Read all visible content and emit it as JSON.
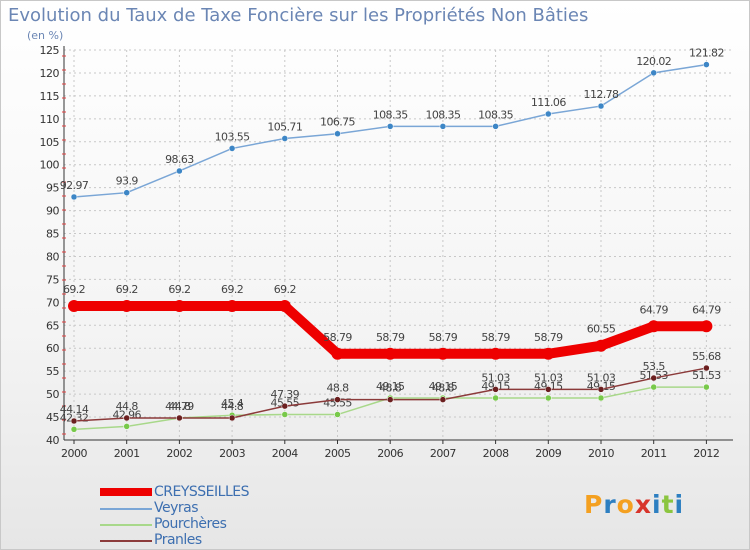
{
  "title": "Evolution du Taux de Taxe Foncière sur les Propriétés Non Bâties",
  "subtitle": "(en %)",
  "logo": {
    "text": "Proxiti",
    "letter_colors": [
      "#f4a020",
      "#2d7fc1",
      "#f4a020",
      "#d8342a",
      "#2d7fc1",
      "#8bc53f",
      "#2d7fc1"
    ]
  },
  "colors": {
    "title": "#6b86b4",
    "grid": "#c8c8c8",
    "axis": "#333333",
    "tick_label": "#333333",
    "data_label": "#444444"
  },
  "chart_data": {
    "type": "line",
    "title": "Evolution du Taux de Taxe Foncière sur les Propriétés Non Bâties",
    "subtitle": "(en %)",
    "xlabel": "",
    "ylabel": "",
    "x": [
      "2000",
      "2001",
      "2002",
      "2003",
      "2004",
      "2005",
      "2006",
      "2007",
      "2008",
      "2009",
      "2010",
      "2011",
      "2012"
    ],
    "ylim": [
      40,
      125
    ],
    "yticks": [
      40,
      45,
      50,
      55,
      60,
      65,
      70,
      75,
      80,
      85,
      90,
      95,
      100,
      105,
      110,
      115,
      120,
      125
    ],
    "grid": true,
    "legend_position": "bottom-left",
    "series": [
      {
        "name": "CREYSSEILLES",
        "color": "#ee0000",
        "emphasis": true,
        "values": [
          69.2,
          69.2,
          69.2,
          69.2,
          69.2,
          58.79,
          58.79,
          58.79,
          58.79,
          58.79,
          60.55,
          64.79,
          64.79
        ],
        "labels": [
          "69.2",
          "69.2",
          "69.2",
          "69.2",
          "69.2",
          "58.79",
          "58.79",
          "58.79",
          "58.79",
          "58.79",
          "60.55",
          "64.79",
          "64.79"
        ]
      },
      {
        "name": "Veyras",
        "color": "#7aa6d6",
        "marker": "#3d86c6",
        "values": [
          92.97,
          93.9,
          98.63,
          103.55,
          105.71,
          106.75,
          108.35,
          108.35,
          108.35,
          111.06,
          112.78,
          120.02,
          121.82
        ],
        "labels": [
          "92.97",
          "93.9",
          "98.63",
          "103.55",
          "105.71",
          "106.75",
          "108.35",
          "108.35",
          "108.35",
          "111.06",
          "112.78",
          "120.02",
          "121.82"
        ]
      },
      {
        "name": "Pourchères",
        "color": "#a8d88a",
        "marker": "#78c94a",
        "values": [
          42.32,
          42.96,
          44.79,
          45.4,
          45.55,
          45.55,
          49.15,
          49.15,
          49.15,
          49.15,
          49.15,
          51.53,
          51.53
        ],
        "labels": [
          "42.32",
          "42.96",
          "44.79",
          "45.4",
          "45.55",
          "45.55",
          "49.15",
          "49.15",
          "49.15",
          "49.15",
          "49.15",
          "51.53",
          "51.53"
        ]
      },
      {
        "name": "Pranles",
        "color": "#8b3a3a",
        "marker": "#6b1f1f",
        "values": [
          44.14,
          44.8,
          44.8,
          44.8,
          47.39,
          48.8,
          48.8,
          48.8,
          51.03,
          51.03,
          51.03,
          53.5,
          55.68
        ],
        "labels": [
          "44.14",
          "44.8",
          "44.8",
          "44.8",
          "47.39",
          "48.8",
          "48.8",
          "48.8",
          "51.03",
          "51.03",
          "51.03",
          "53.5",
          "55.68"
        ]
      }
    ]
  }
}
